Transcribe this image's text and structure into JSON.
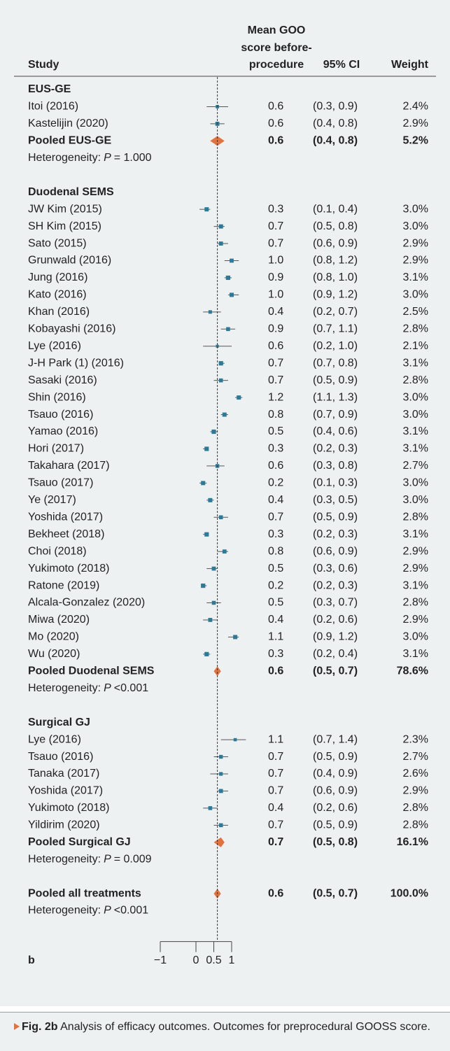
{
  "chart_data": {
    "type": "forest",
    "header": {
      "study": "Study",
      "mean": [
        "Mean GOO",
        "score before-",
        "procedure"
      ],
      "ci": "95% CI",
      "weight": "Weight"
    },
    "xlim": [
      -1,
      1
    ],
    "xticks": [
      {
        "value": -1,
        "label": "−1"
      },
      0,
      0.5,
      1
    ],
    "panel_label": "b",
    "study_color": "#2b7b98",
    "pooled_color": "#e2733f",
    "groups": [
      {
        "name": "EUS-GE",
        "studies": [
          {
            "name": "Itoi (2016)",
            "value": 0.6,
            "value_label": "0.6",
            "ci": [
              0.3,
              0.9
            ],
            "ci_label": "(0.3, 0.9)",
            "weight": 2.4,
            "weight_label": "2.4%"
          },
          {
            "name": "Kastelijin (2020)",
            "value": 0.6,
            "value_label": "0.6",
            "ci": [
              0.4,
              0.8
            ],
            "ci_label": "(0.4, 0.8)",
            "weight": 2.9,
            "weight_label": "2.9%"
          }
        ],
        "pooled": {
          "name": "Pooled EUS-GE",
          "value": 0.6,
          "value_label": "0.6",
          "ci": [
            0.4,
            0.8
          ],
          "ci_label": "(0.4, 0.8)",
          "weight": 5.2,
          "weight_label": "5.2%"
        },
        "heterogeneity": {
          "label": "Heterogeneity:",
          "stat": "P",
          "result": "= 1.000"
        }
      },
      {
        "name": "Duodenal SEMS",
        "studies": [
          {
            "name": "JW Kim (2015)",
            "value": 0.3,
            "value_label": "0.3",
            "ci": [
              0.1,
              0.4
            ],
            "ci_label": "(0.1, 0.4)",
            "weight": 3.0,
            "weight_label": "3.0%"
          },
          {
            "name": "SH Kim (2015)",
            "value": 0.7,
            "value_label": "0.7",
            "ci": [
              0.5,
              0.8
            ],
            "ci_label": "(0.5, 0.8)",
            "weight": 3.0,
            "weight_label": "3.0%"
          },
          {
            "name": "Sato (2015)",
            "value": 0.7,
            "value_label": "0.7",
            "ci": [
              0.6,
              0.9
            ],
            "ci_label": "(0.6, 0.9)",
            "weight": 2.9,
            "weight_label": "2.9%"
          },
          {
            "name": "Grunwald (2016)",
            "value": 1.0,
            "value_label": "1.0",
            "ci": [
              0.8,
              1.2
            ],
            "ci_label": "(0.8, 1.2)",
            "weight": 2.9,
            "weight_label": "2.9%"
          },
          {
            "name": "Jung (2016)",
            "value": 0.9,
            "value_label": "0.9",
            "ci": [
              0.8,
              1.0
            ],
            "ci_label": "(0.8, 1.0)",
            "weight": 3.1,
            "weight_label": "3.1%"
          },
          {
            "name": "Kato (2016)",
            "value": 1.0,
            "value_label": "1.0",
            "ci": [
              0.9,
              1.2
            ],
            "ci_label": "(0.9, 1.2)",
            "weight": 3.0,
            "weight_label": "3.0%"
          },
          {
            "name": "Khan (2016)",
            "value": 0.4,
            "value_label": "0.4",
            "ci": [
              0.2,
              0.7
            ],
            "ci_label": "(0.2, 0.7)",
            "weight": 2.5,
            "weight_label": "2.5%"
          },
          {
            "name": "Kobayashi (2016)",
            "value": 0.9,
            "value_label": "0.9",
            "ci": [
              0.7,
              1.1
            ],
            "ci_label": "(0.7, 1.1)",
            "weight": 2.8,
            "weight_label": "2.8%"
          },
          {
            "name": "Lye (2016)",
            "value": 0.6,
            "value_label": "0.6",
            "ci": [
              0.2,
              1.0
            ],
            "ci_label": "(0.2, 1.0)",
            "weight": 2.1,
            "weight_label": "2.1%"
          },
          {
            "name": "J-H Park (1) (2016)",
            "value": 0.7,
            "value_label": "0.7",
            "ci": [
              0.7,
              0.8
            ],
            "ci_label": "(0.7, 0.8)",
            "weight": 3.1,
            "weight_label": "3.1%"
          },
          {
            "name": "Sasaki (2016)",
            "value": 0.7,
            "value_label": "0.7",
            "ci": [
              0.5,
              0.9
            ],
            "ci_label": "(0.5, 0.9)",
            "weight": 2.8,
            "weight_label": "2.8%"
          },
          {
            "name": "Shin (2016)",
            "value": 1.2,
            "value_label": "1.2",
            "ci": [
              1.1,
              1.3
            ],
            "ci_label": "(1.1, 1.3)",
            "weight": 3.0,
            "weight_label": "3.0%"
          },
          {
            "name": "Tsauo (2016)",
            "value": 0.8,
            "value_label": "0.8",
            "ci": [
              0.7,
              0.9
            ],
            "ci_label": "(0.7, 0.9)",
            "weight": 3.0,
            "weight_label": "3.0%"
          },
          {
            "name": "Yamao (2016)",
            "value": 0.5,
            "value_label": "0.5",
            "ci": [
              0.4,
              0.6
            ],
            "ci_label": "(0.4, 0.6)",
            "weight": 3.1,
            "weight_label": "3.1%"
          },
          {
            "name": "Hori (2017)",
            "value": 0.3,
            "value_label": "0.3",
            "ci": [
              0.2,
              0.3
            ],
            "ci_label": "(0.2, 0.3)",
            "weight": 3.1,
            "weight_label": "3.1%"
          },
          {
            "name": "Takahara (2017)",
            "value": 0.6,
            "value_label": "0.6",
            "ci": [
              0.3,
              0.8
            ],
            "ci_label": "(0.3, 0.8)",
            "weight": 2.7,
            "weight_label": "2.7%"
          },
          {
            "name": "Tsauo (2017)",
            "value": 0.2,
            "value_label": "0.2",
            "ci": [
              0.1,
              0.3
            ],
            "ci_label": "(0.1, 0.3)",
            "weight": 3.0,
            "weight_label": "3.0%"
          },
          {
            "name": "Ye (2017)",
            "value": 0.4,
            "value_label": "0.4",
            "ci": [
              0.3,
              0.5
            ],
            "ci_label": "(0.3, 0.5)",
            "weight": 3.0,
            "weight_label": "3.0%"
          },
          {
            "name": "Yoshida (2017)",
            "value": 0.7,
            "value_label": "0.7",
            "ci": [
              0.5,
              0.9
            ],
            "ci_label": "(0.5, 0.9)",
            "weight": 2.8,
            "weight_label": "2.8%"
          },
          {
            "name": "Bekheet (2018)",
            "value": 0.3,
            "value_label": "0.3",
            "ci": [
              0.2,
              0.3
            ],
            "ci_label": "(0.2, 0.3)",
            "weight": 3.1,
            "weight_label": "3.1%"
          },
          {
            "name": "Choi (2018)",
            "value": 0.8,
            "value_label": "0.8",
            "ci": [
              0.6,
              0.9
            ],
            "ci_label": "(0.6, 0.9)",
            "weight": 2.9,
            "weight_label": "2.9%"
          },
          {
            "name": "Yukimoto (2018)",
            "value": 0.5,
            "value_label": "0.5",
            "ci": [
              0.3,
              0.6
            ],
            "ci_label": "(0.3, 0.6)",
            "weight": 2.9,
            "weight_label": "2.9%"
          },
          {
            "name": "Ratone (2019)",
            "value": 0.2,
            "value_label": "0.2",
            "ci": [
              0.2,
              0.3
            ],
            "ci_label": "(0.2, 0.3)",
            "weight": 3.1,
            "weight_label": "3.1%"
          },
          {
            "name": "Alcala-Gonzalez (2020)",
            "value": 0.5,
            "value_label": "0.5",
            "ci": [
              0.3,
              0.7
            ],
            "ci_label": "(0.3, 0.7)",
            "weight": 2.8,
            "weight_label": "2.8%"
          },
          {
            "name": "Miwa (2020)",
            "value": 0.4,
            "value_label": "0.4",
            "ci": [
              0.2,
              0.6
            ],
            "ci_label": "(0.2, 0.6)",
            "weight": 2.9,
            "weight_label": "2.9%"
          },
          {
            "name": "Mo (2020)",
            "value": 1.1,
            "value_label": "1.1",
            "ci": [
              0.9,
              1.2
            ],
            "ci_label": "(0.9, 1.2)",
            "weight": 3.0,
            "weight_label": "3.0%"
          },
          {
            "name": "Wu (2020)",
            "value": 0.3,
            "value_label": "0.3",
            "ci": [
              0.2,
              0.4
            ],
            "ci_label": "(0.2, 0.4)",
            "weight": 3.1,
            "weight_label": "3.1%"
          }
        ],
        "pooled": {
          "name": "Pooled Duodenal SEMS",
          "value": 0.6,
          "value_label": "0.6",
          "ci": [
            0.5,
            0.7
          ],
          "ci_label": "(0.5, 0.7)",
          "weight": 78.6,
          "weight_label": "78.6%"
        },
        "heterogeneity": {
          "label": "Heterogeneity:",
          "stat": "P",
          "result": "<0.001"
        }
      },
      {
        "name": "Surgical GJ",
        "studies": [
          {
            "name": "Lye (2016)",
            "value": 1.1,
            "value_label": "1.1",
            "ci": [
              0.7,
              1.4
            ],
            "ci_label": "(0.7, 1.4)",
            "weight": 2.3,
            "weight_label": "2.3%"
          },
          {
            "name": "Tsauo (2016)",
            "value": 0.7,
            "value_label": "0.7",
            "ci": [
              0.5,
              0.9
            ],
            "ci_label": "(0.5, 0.9)",
            "weight": 2.7,
            "weight_label": "2.7%"
          },
          {
            "name": "Tanaka (2017)",
            "value": 0.7,
            "value_label": "0.7",
            "ci": [
              0.4,
              0.9
            ],
            "ci_label": "(0.4, 0.9)",
            "weight": 2.6,
            "weight_label": "2.6%"
          },
          {
            "name": "Yoshida (2017)",
            "value": 0.7,
            "value_label": "0.7",
            "ci": [
              0.6,
              0.9
            ],
            "ci_label": "(0.6, 0.9)",
            "weight": 2.9,
            "weight_label": "2.9%"
          },
          {
            "name": "Yukimoto (2018)",
            "value": 0.4,
            "value_label": "0.4",
            "ci": [
              0.2,
              0.6
            ],
            "ci_label": "(0.2, 0.6)",
            "weight": 2.8,
            "weight_label": "2.8%"
          },
          {
            "name": "Yildirim (2020)",
            "value": 0.7,
            "value_label": "0.7",
            "ci": [
              0.5,
              0.9
            ],
            "ci_label": "(0.5, 0.9)",
            "weight": 2.8,
            "weight_label": "2.8%"
          }
        ],
        "pooled": {
          "name": "Pooled Surgical GJ",
          "value": 0.7,
          "value_label": "0.7",
          "ci": [
            0.5,
            0.8
          ],
          "ci_label": "(0.5, 0.8)",
          "weight": 16.1,
          "weight_label": "16.1%"
        },
        "heterogeneity": {
          "label": "Heterogeneity:",
          "stat": "P",
          "result": "= 0.009"
        }
      }
    ],
    "overall": {
      "pooled": {
        "name": "Pooled all treatments",
        "value": 0.6,
        "value_label": "0.6",
        "ci": [
          0.5,
          0.7
        ],
        "ci_label": "(0.5, 0.7)",
        "weight": 100.0,
        "weight_label": "100.0%"
      },
      "heterogeneity": {
        "label": "Heterogeneity:",
        "stat": "P",
        "result": "<0.001"
      }
    },
    "caption": {
      "label": "Fig. 2b",
      "text": "Analysis of efficacy outcomes. Outcomes for preprocedural GOOSS score."
    }
  }
}
